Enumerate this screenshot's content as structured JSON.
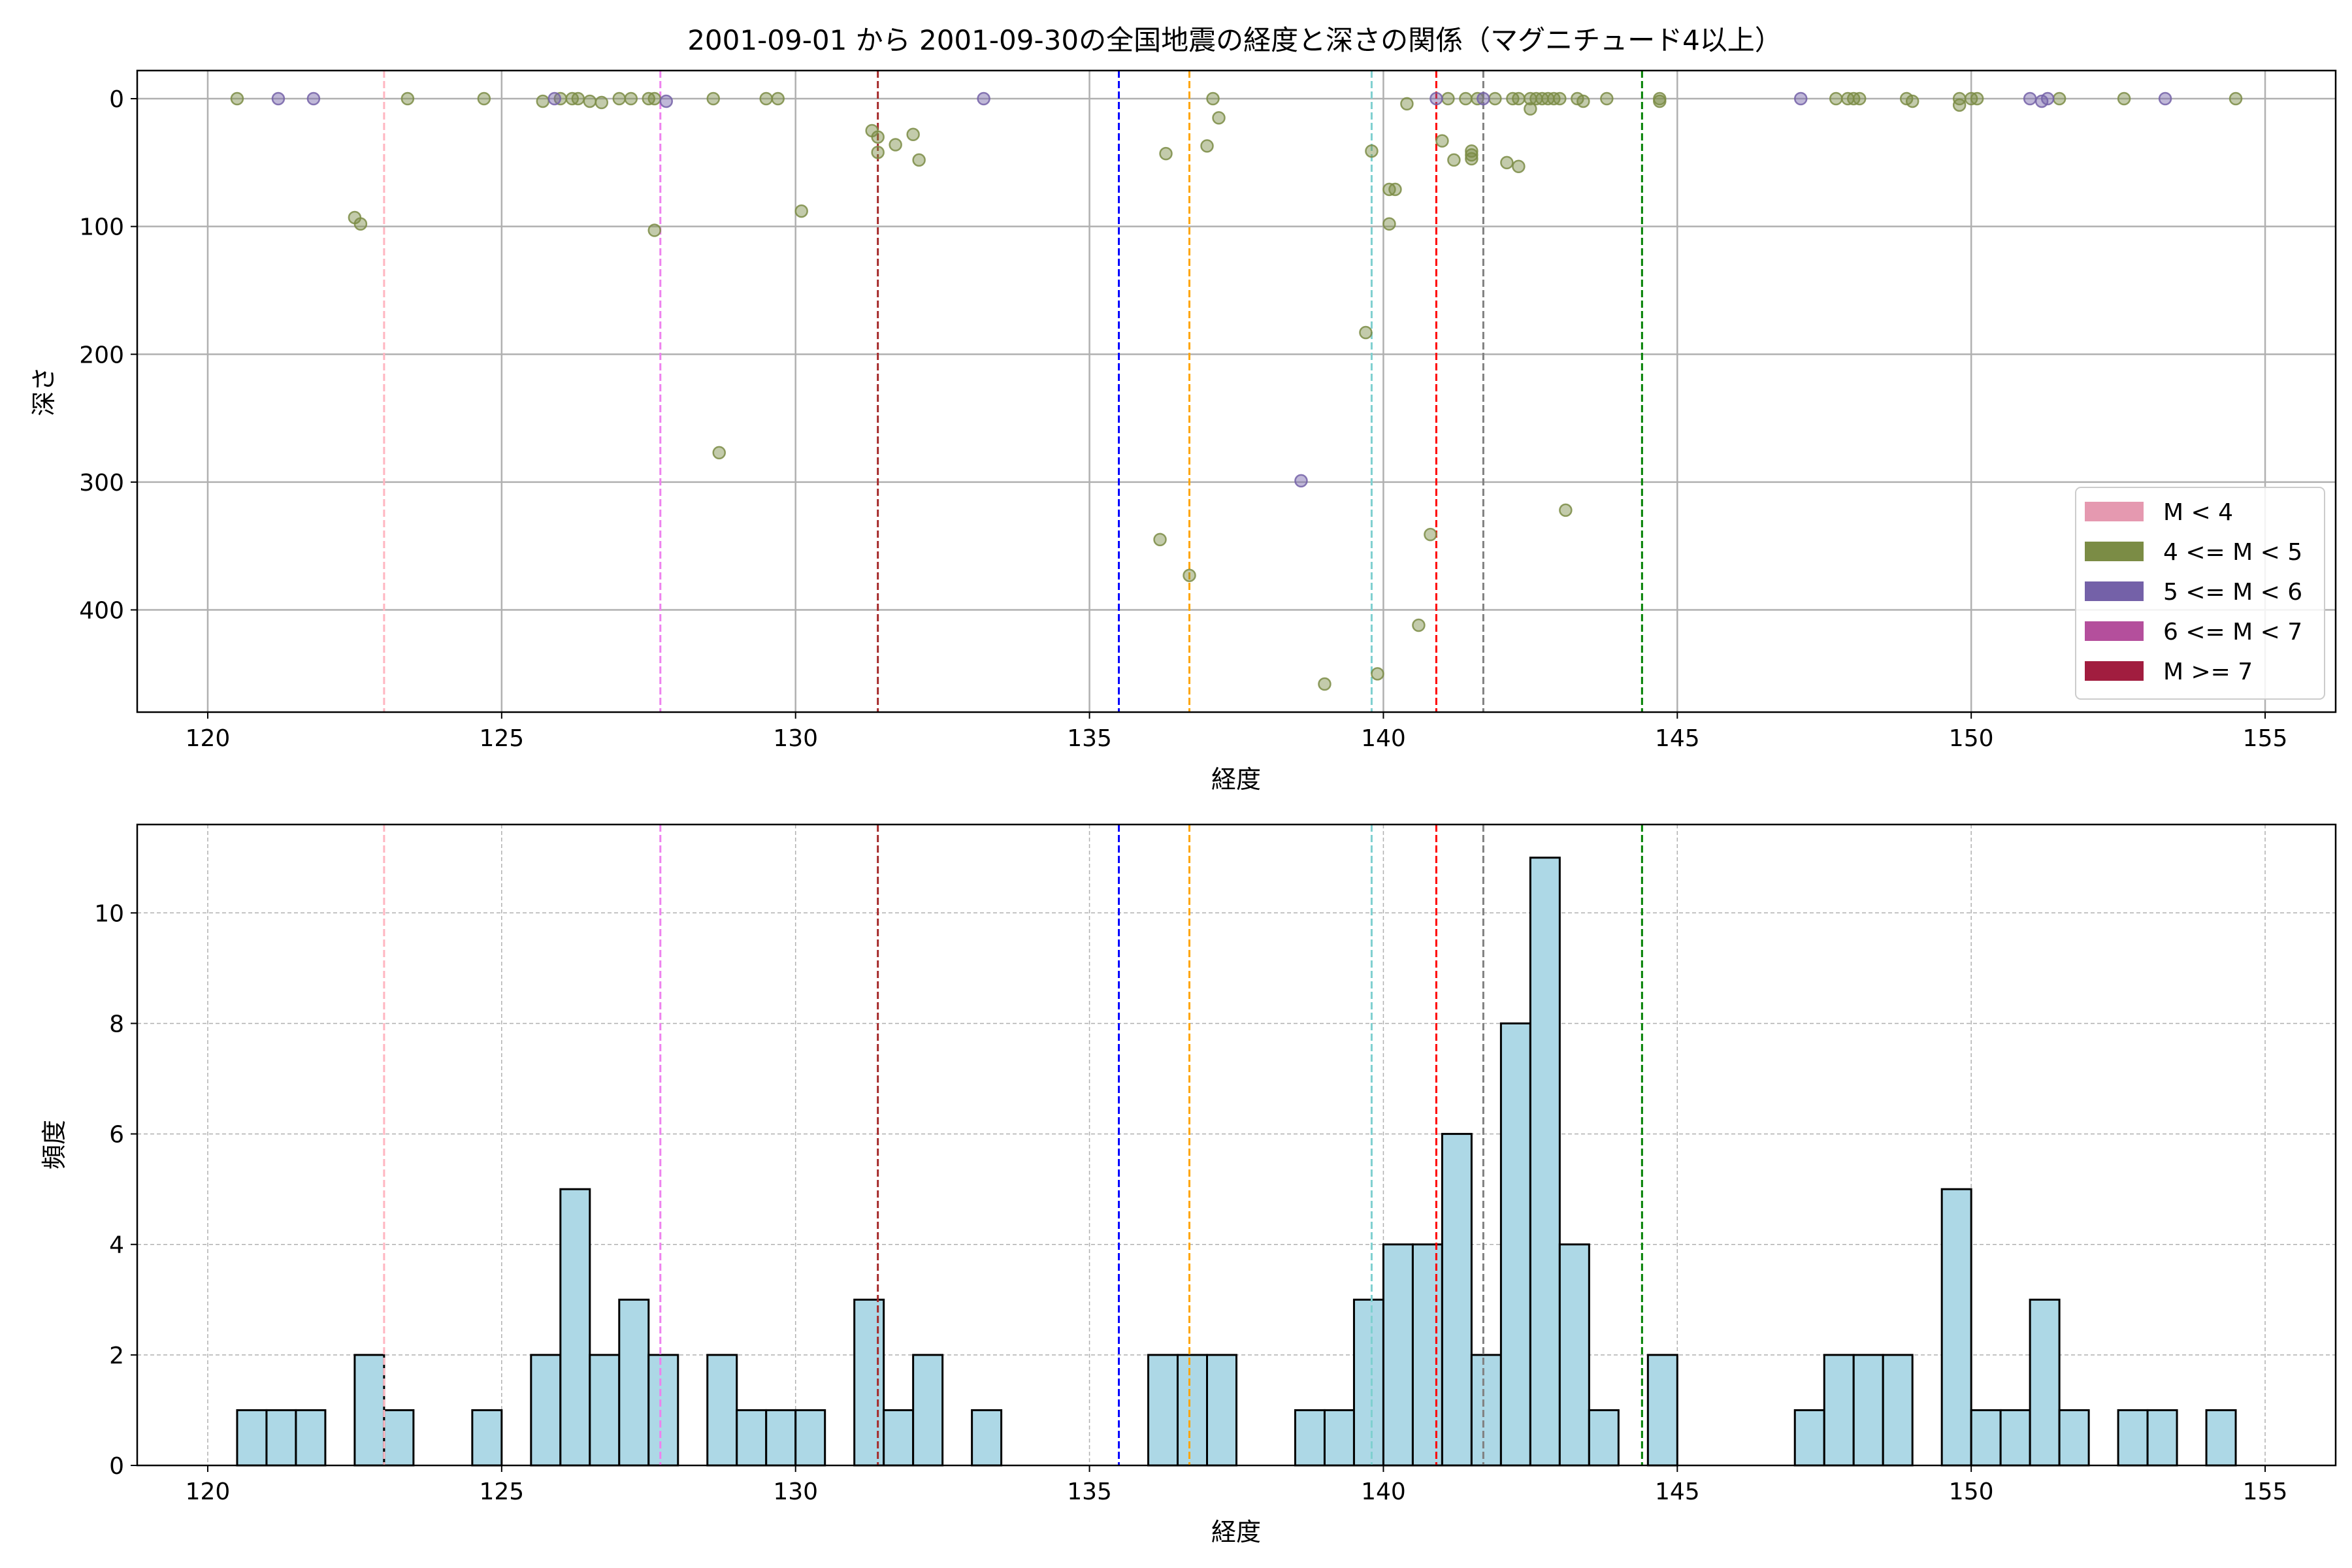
{
  "figure_title": "2001-09-01 から 2001-09-30の全国地震の経度と深さの関係（マグニチュード4以上）",
  "colors": {
    "m_lt4": "#e599b0",
    "m_4_5": "#7b8c45",
    "m_5_6": "#7461a8",
    "m_6_7": "#b44f9c",
    "m_ge7": "#a11d3f",
    "hist_fill": "#add8e6",
    "grid": "#b0b0b0"
  },
  "chart_data": [
    {
      "type": "scatter",
      "title": "",
      "xlabel": "経度",
      "ylabel": "深さ",
      "xlim": [
        118.8,
        156.2
      ],
      "ylim": [
        480,
        -22
      ],
      "y_inverted": true,
      "xticks": [
        120,
        125,
        130,
        135,
        140,
        145,
        150,
        155
      ],
      "yticks": [
        0,
        100,
        200,
        300,
        400
      ],
      "grid": true,
      "legend_position": "lower-right",
      "legend": [
        {
          "label": "M < 4",
          "color": "#e599b0"
        },
        {
          "label": "4 <= M < 5",
          "color": "#7b8c45"
        },
        {
          "label": "5 <= M < 6",
          "color": "#7461a8"
        },
        {
          "label": "6 <= M < 7",
          "color": "#b44f9c"
        },
        {
          "label": "M >= 7",
          "color": "#a11d3f"
        }
      ],
      "vlines": [
        {
          "x": 123.0,
          "color": "#ffb6c1"
        },
        {
          "x": 127.7,
          "color": "#ee82ee"
        },
        {
          "x": 131.4,
          "color": "#a52a2a"
        },
        {
          "x": 135.5,
          "color": "#0000ff"
        },
        {
          "x": 136.7,
          "color": "#ffa500"
        },
        {
          "x": 139.8,
          "color": "#7fd0d0"
        },
        {
          "x": 140.9,
          "color": "#ff0000"
        },
        {
          "x": 141.7,
          "color": "#808080"
        },
        {
          "x": 144.4,
          "color": "#008000"
        }
      ],
      "series": [
        {
          "name": "4 <= M < 5",
          "points": [
            [
              120.5,
              0
            ],
            [
              122.5,
              93
            ],
            [
              122.6,
              98
            ],
            [
              123.4,
              0
            ],
            [
              124.7,
              0
            ],
            [
              125.7,
              2
            ],
            [
              126.0,
              0
            ],
            [
              126.2,
              0
            ],
            [
              126.3,
              0
            ],
            [
              126.5,
              2
            ],
            [
              126.7,
              3
            ],
            [
              127.0,
              0
            ],
            [
              127.2,
              0
            ],
            [
              127.5,
              0
            ],
            [
              127.6,
              0
            ],
            [
              127.6,
              103
            ],
            [
              128.6,
              0
            ],
            [
              128.7,
              277
            ],
            [
              129.5,
              0
            ],
            [
              129.7,
              0
            ],
            [
              130.1,
              88
            ],
            [
              131.3,
              25
            ],
            [
              131.4,
              30
            ],
            [
              131.4,
              42
            ],
            [
              131.7,
              36
            ],
            [
              132.0,
              28
            ],
            [
              132.1,
              48
            ],
            [
              136.2,
              345
            ],
            [
              136.3,
              43
            ],
            [
              136.7,
              373
            ],
            [
              137.0,
              37
            ],
            [
              137.1,
              0
            ],
            [
              137.2,
              15
            ],
            [
              139.7,
              183
            ],
            [
              139.8,
              41
            ],
            [
              139.9,
              450
            ],
            [
              140.1,
              98
            ],
            [
              140.1,
              71
            ],
            [
              140.2,
              71
            ],
            [
              140.4,
              4
            ],
            [
              140.6,
              412
            ],
            [
              140.8,
              341
            ],
            [
              141.0,
              33
            ],
            [
              141.1,
              0
            ],
            [
              141.2,
              48
            ],
            [
              141.4,
              0
            ],
            [
              141.5,
              44
            ],
            [
              141.5,
              47
            ],
            [
              141.5,
              41
            ],
            [
              141.6,
              0
            ],
            [
              141.9,
              0
            ],
            [
              142.1,
              50
            ],
            [
              142.2,
              0
            ],
            [
              142.3,
              53
            ],
            [
              142.3,
              0
            ],
            [
              142.5,
              0
            ],
            [
              142.5,
              8
            ],
            [
              142.6,
              0
            ],
            [
              142.7,
              0
            ],
            [
              142.8,
              0
            ],
            [
              142.9,
              0
            ],
            [
              143.0,
              0
            ],
            [
              143.1,
              322
            ],
            [
              143.3,
              0
            ],
            [
              143.4,
              2
            ],
            [
              143.8,
              0
            ],
            [
              144.7,
              0
            ],
            [
              144.7,
              2
            ],
            [
              147.7,
              0
            ],
            [
              147.9,
              0
            ],
            [
              148.0,
              0
            ],
            [
              148.1,
              0
            ],
            [
              148.9,
              0
            ],
            [
              149.0,
              2
            ],
            [
              149.8,
              5
            ],
            [
              149.8,
              0
            ],
            [
              150.0,
              0
            ],
            [
              150.1,
              0
            ],
            [
              151.5,
              0
            ],
            [
              152.6,
              0
            ],
            [
              154.5,
              0
            ],
            [
              139.0,
              458
            ]
          ]
        },
        {
          "name": "5 <= M < 6",
          "points": [
            [
              121.2,
              0
            ],
            [
              121.8,
              0
            ],
            [
              125.9,
              0
            ],
            [
              127.8,
              2
            ],
            [
              133.2,
              0
            ],
            [
              138.6,
              299
            ],
            [
              140.9,
              0
            ],
            [
              141.7,
              0
            ],
            [
              147.1,
              0
            ],
            [
              151.0,
              0
            ],
            [
              151.2,
              2
            ],
            [
              151.3,
              0
            ],
            [
              153.3,
              0
            ]
          ]
        }
      ]
    },
    {
      "type": "bar",
      "title": "",
      "xlabel": "経度",
      "ylabel": "頻度",
      "xlim": [
        118.8,
        156.2
      ],
      "ylim": [
        0,
        11.6
      ],
      "xticks": [
        120,
        125,
        130,
        135,
        140,
        145,
        150,
        155
      ],
      "yticks": [
        0,
        2,
        4,
        6,
        8,
        10
      ],
      "grid": true,
      "bin_width": 0.5,
      "bins": [
        [
          120.5,
          1
        ],
        [
          121.0,
          1
        ],
        [
          121.5,
          1
        ],
        [
          122.5,
          2
        ],
        [
          123.0,
          1
        ],
        [
          124.5,
          1
        ],
        [
          125.5,
          2
        ],
        [
          126.0,
          5
        ],
        [
          126.5,
          2
        ],
        [
          127.0,
          3
        ],
        [
          127.5,
          2
        ],
        [
          128.5,
          2
        ],
        [
          129.0,
          1
        ],
        [
          129.5,
          1
        ],
        [
          130.0,
          1
        ],
        [
          131.0,
          3
        ],
        [
          131.5,
          1
        ],
        [
          132.0,
          2
        ],
        [
          133.0,
          1
        ],
        [
          136.0,
          2
        ],
        [
          136.5,
          2
        ],
        [
          137.0,
          2
        ],
        [
          138.5,
          1
        ],
        [
          139.0,
          1
        ],
        [
          139.5,
          3
        ],
        [
          140.0,
          4
        ],
        [
          140.5,
          4
        ],
        [
          141.0,
          6
        ],
        [
          141.5,
          2
        ],
        [
          142.0,
          8
        ],
        [
          142.5,
          11
        ],
        [
          143.0,
          4
        ],
        [
          143.5,
          1
        ],
        [
          144.5,
          2
        ],
        [
          147.0,
          1
        ],
        [
          147.5,
          2
        ],
        [
          148.0,
          2
        ],
        [
          148.5,
          2
        ],
        [
          149.5,
          5
        ],
        [
          150.0,
          1
        ],
        [
          150.5,
          1
        ],
        [
          151.0,
          3
        ],
        [
          151.5,
          1
        ],
        [
          152.5,
          1
        ],
        [
          153.0,
          1
        ],
        [
          154.0,
          1
        ]
      ]
    }
  ]
}
